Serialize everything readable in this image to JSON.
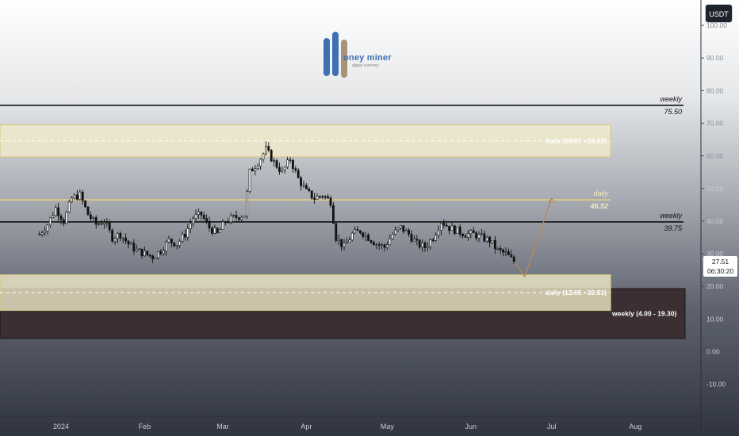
{
  "header": {
    "currency_label": "USDT"
  },
  "logo": {
    "text": "oney miner",
    "subtitle": "digital currency"
  },
  "price_badge": {
    "price": "27.51",
    "countdown": "06:30:20"
  },
  "colors": {
    "zone_daily": "#f2eccb",
    "zone_weekly": "#3b2f33",
    "projection": "#b58a5a",
    "level_line": "#111111",
    "candle": "#111111"
  },
  "chart_data": {
    "type": "candlestick",
    "ylim": [
      -20,
      103
    ],
    "y_ticks": [
      "-10.00",
      "0.00",
      "10.00",
      "20.00",
      "30.00",
      "40.00",
      "50.00",
      "60.00",
      "70.00",
      "80.00",
      "90.00",
      "100.00"
    ],
    "x_ticks": [
      "2024",
      "Feb",
      "Mar",
      "Apr",
      "May",
      "Jun",
      "Jul",
      "Aug"
    ],
    "grid": false,
    "levels": [
      {
        "label_top": "weekly",
        "label_bottom": "75.50",
        "value": 75.5,
        "color": "#111111"
      },
      {
        "label_top": "weekly",
        "label_bottom": "39.75",
        "value": 39.75,
        "color": "#111111"
      },
      {
        "label_top": "daily",
        "label_bottom": "46.52",
        "value": 46.52,
        "color": "#d8c98a"
      }
    ],
    "zones": [
      {
        "label": "daily (59.67 - 69.52)",
        "low": 59.67,
        "high": 69.52,
        "kind": "daily"
      },
      {
        "label": "daily (12.65 - 23.51)",
        "low": 12.65,
        "high": 23.51,
        "kind": "daily"
      },
      {
        "label": "weekly (4.00 - 19.30)",
        "low": 4.0,
        "high": 19.3,
        "kind": "weekly"
      }
    ],
    "close_path": [
      [
        "2023-12-24",
        36
      ],
      [
        "2023-12-27",
        39
      ],
      [
        "2023-12-30",
        44
      ],
      [
        "2024-01-02",
        40
      ],
      [
        "2024-01-05",
        47
      ],
      [
        "2024-01-08",
        48
      ],
      [
        "2024-01-11",
        42
      ],
      [
        "2024-01-14",
        39
      ],
      [
        "2024-01-17",
        40
      ],
      [
        "2024-01-20",
        35
      ],
      [
        "2024-01-23",
        36
      ],
      [
        "2024-01-26",
        33
      ],
      [
        "2024-01-29",
        31
      ],
      [
        "2024-02-01",
        30
      ],
      [
        "2024-02-04",
        29
      ],
      [
        "2024-02-07",
        31
      ],
      [
        "2024-02-10",
        34
      ],
      [
        "2024-02-13",
        33
      ],
      [
        "2024-02-16",
        36
      ],
      [
        "2024-02-19",
        41
      ],
      [
        "2024-02-22",
        42
      ],
      [
        "2024-02-25",
        38
      ],
      [
        "2024-02-28",
        36
      ],
      [
        "2024-03-02",
        40
      ],
      [
        "2024-03-05",
        41
      ],
      [
        "2024-03-09",
        42
      ],
      [
        "2024-03-11",
        55
      ],
      [
        "2024-03-14",
        58
      ],
      [
        "2024-03-17",
        62
      ],
      [
        "2024-03-20",
        58
      ],
      [
        "2024-03-23",
        55
      ],
      [
        "2024-03-26",
        59
      ],
      [
        "2024-03-29",
        53
      ],
      [
        "2024-04-01",
        49
      ],
      [
        "2024-04-04",
        47
      ],
      [
        "2024-04-07",
        48
      ],
      [
        "2024-04-10",
        46
      ],
      [
        "2024-04-12",
        35
      ],
      [
        "2024-04-15",
        32
      ],
      [
        "2024-04-18",
        36
      ],
      [
        "2024-04-21",
        37
      ],
      [
        "2024-04-24",
        35
      ],
      [
        "2024-04-27",
        33
      ],
      [
        "2024-04-30",
        32
      ],
      [
        "2024-05-03",
        36
      ],
      [
        "2024-05-06",
        38
      ],
      [
        "2024-05-09",
        36
      ],
      [
        "2024-05-12",
        33
      ],
      [
        "2024-05-15",
        32
      ],
      [
        "2024-05-18",
        35
      ],
      [
        "2024-05-21",
        40
      ],
      [
        "2024-05-24",
        38
      ],
      [
        "2024-05-27",
        37
      ],
      [
        "2024-05-30",
        36
      ],
      [
        "2024-06-02",
        36
      ],
      [
        "2024-06-05",
        35
      ],
      [
        "2024-06-08",
        34
      ],
      [
        "2024-06-11",
        31
      ],
      [
        "2024-06-14",
        30
      ],
      [
        "2024-06-17",
        27.51
      ]
    ],
    "projection_path": [
      [
        "2024-06-17",
        27.51
      ],
      [
        "2024-06-21",
        23
      ],
      [
        "2024-07-01",
        47
      ]
    ]
  }
}
